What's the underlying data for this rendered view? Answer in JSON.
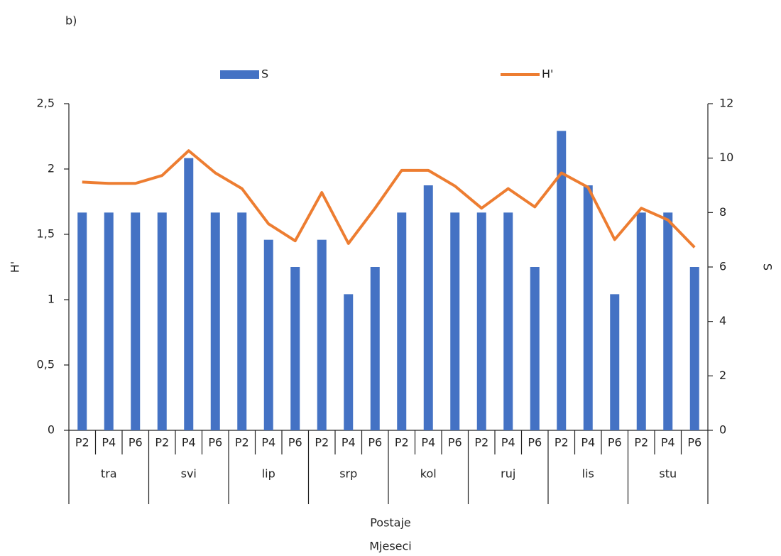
{
  "chart_data": {
    "type": "bar_line",
    "panel_label": "b)",
    "x_label": "Postaje",
    "x_group_label": "Mjeseci",
    "y_label": "H'",
    "y2_label": "S",
    "categories": [
      "P2",
      "P4",
      "P6",
      "P2",
      "P4",
      "P6",
      "P2",
      "P4",
      "P6",
      "P2",
      "P4",
      "P6",
      "P2",
      "P4",
      "P6",
      "P2",
      "P4",
      "P6",
      "P2",
      "P4",
      "P6",
      "P2",
      "P4",
      "P6"
    ],
    "groups": [
      "tra",
      "svi",
      "lip",
      "srp",
      "kol",
      "ruj",
      "lis",
      "stu"
    ],
    "series": [
      {
        "name": "S",
        "type": "bar",
        "axis": "y2",
        "color": "#4472c4",
        "values": [
          8,
          8,
          8,
          8,
          10,
          8,
          8,
          7,
          6,
          7,
          5,
          6,
          8,
          9,
          8,
          8,
          8,
          6,
          11,
          9,
          5,
          8,
          8,
          6
        ]
      },
      {
        "name": "H'",
        "type": "line",
        "axis": "y",
        "color": "#ed7d31",
        "values": [
          1.9,
          1.89,
          1.89,
          1.95,
          2.14,
          1.97,
          1.85,
          1.58,
          1.45,
          1.82,
          1.43,
          1.7,
          1.99,
          1.99,
          1.87,
          1.7,
          1.85,
          1.71,
          1.97,
          1.86,
          1.46,
          1.7,
          1.61,
          1.4
        ]
      }
    ],
    "ylim": [
      0,
      2.5
    ],
    "yticks": [
      0,
      {
        "value": 0.5,
        "label": "0,5"
      },
      1,
      {
        "value": 1.5,
        "label": "1,5"
      },
      2,
      {
        "value": 2.5,
        "label": "2,5"
      }
    ],
    "y2lim": [
      0,
      12
    ],
    "y2ticks": [
      0,
      2,
      4,
      6,
      8,
      10,
      12
    ],
    "legend": "top"
  }
}
